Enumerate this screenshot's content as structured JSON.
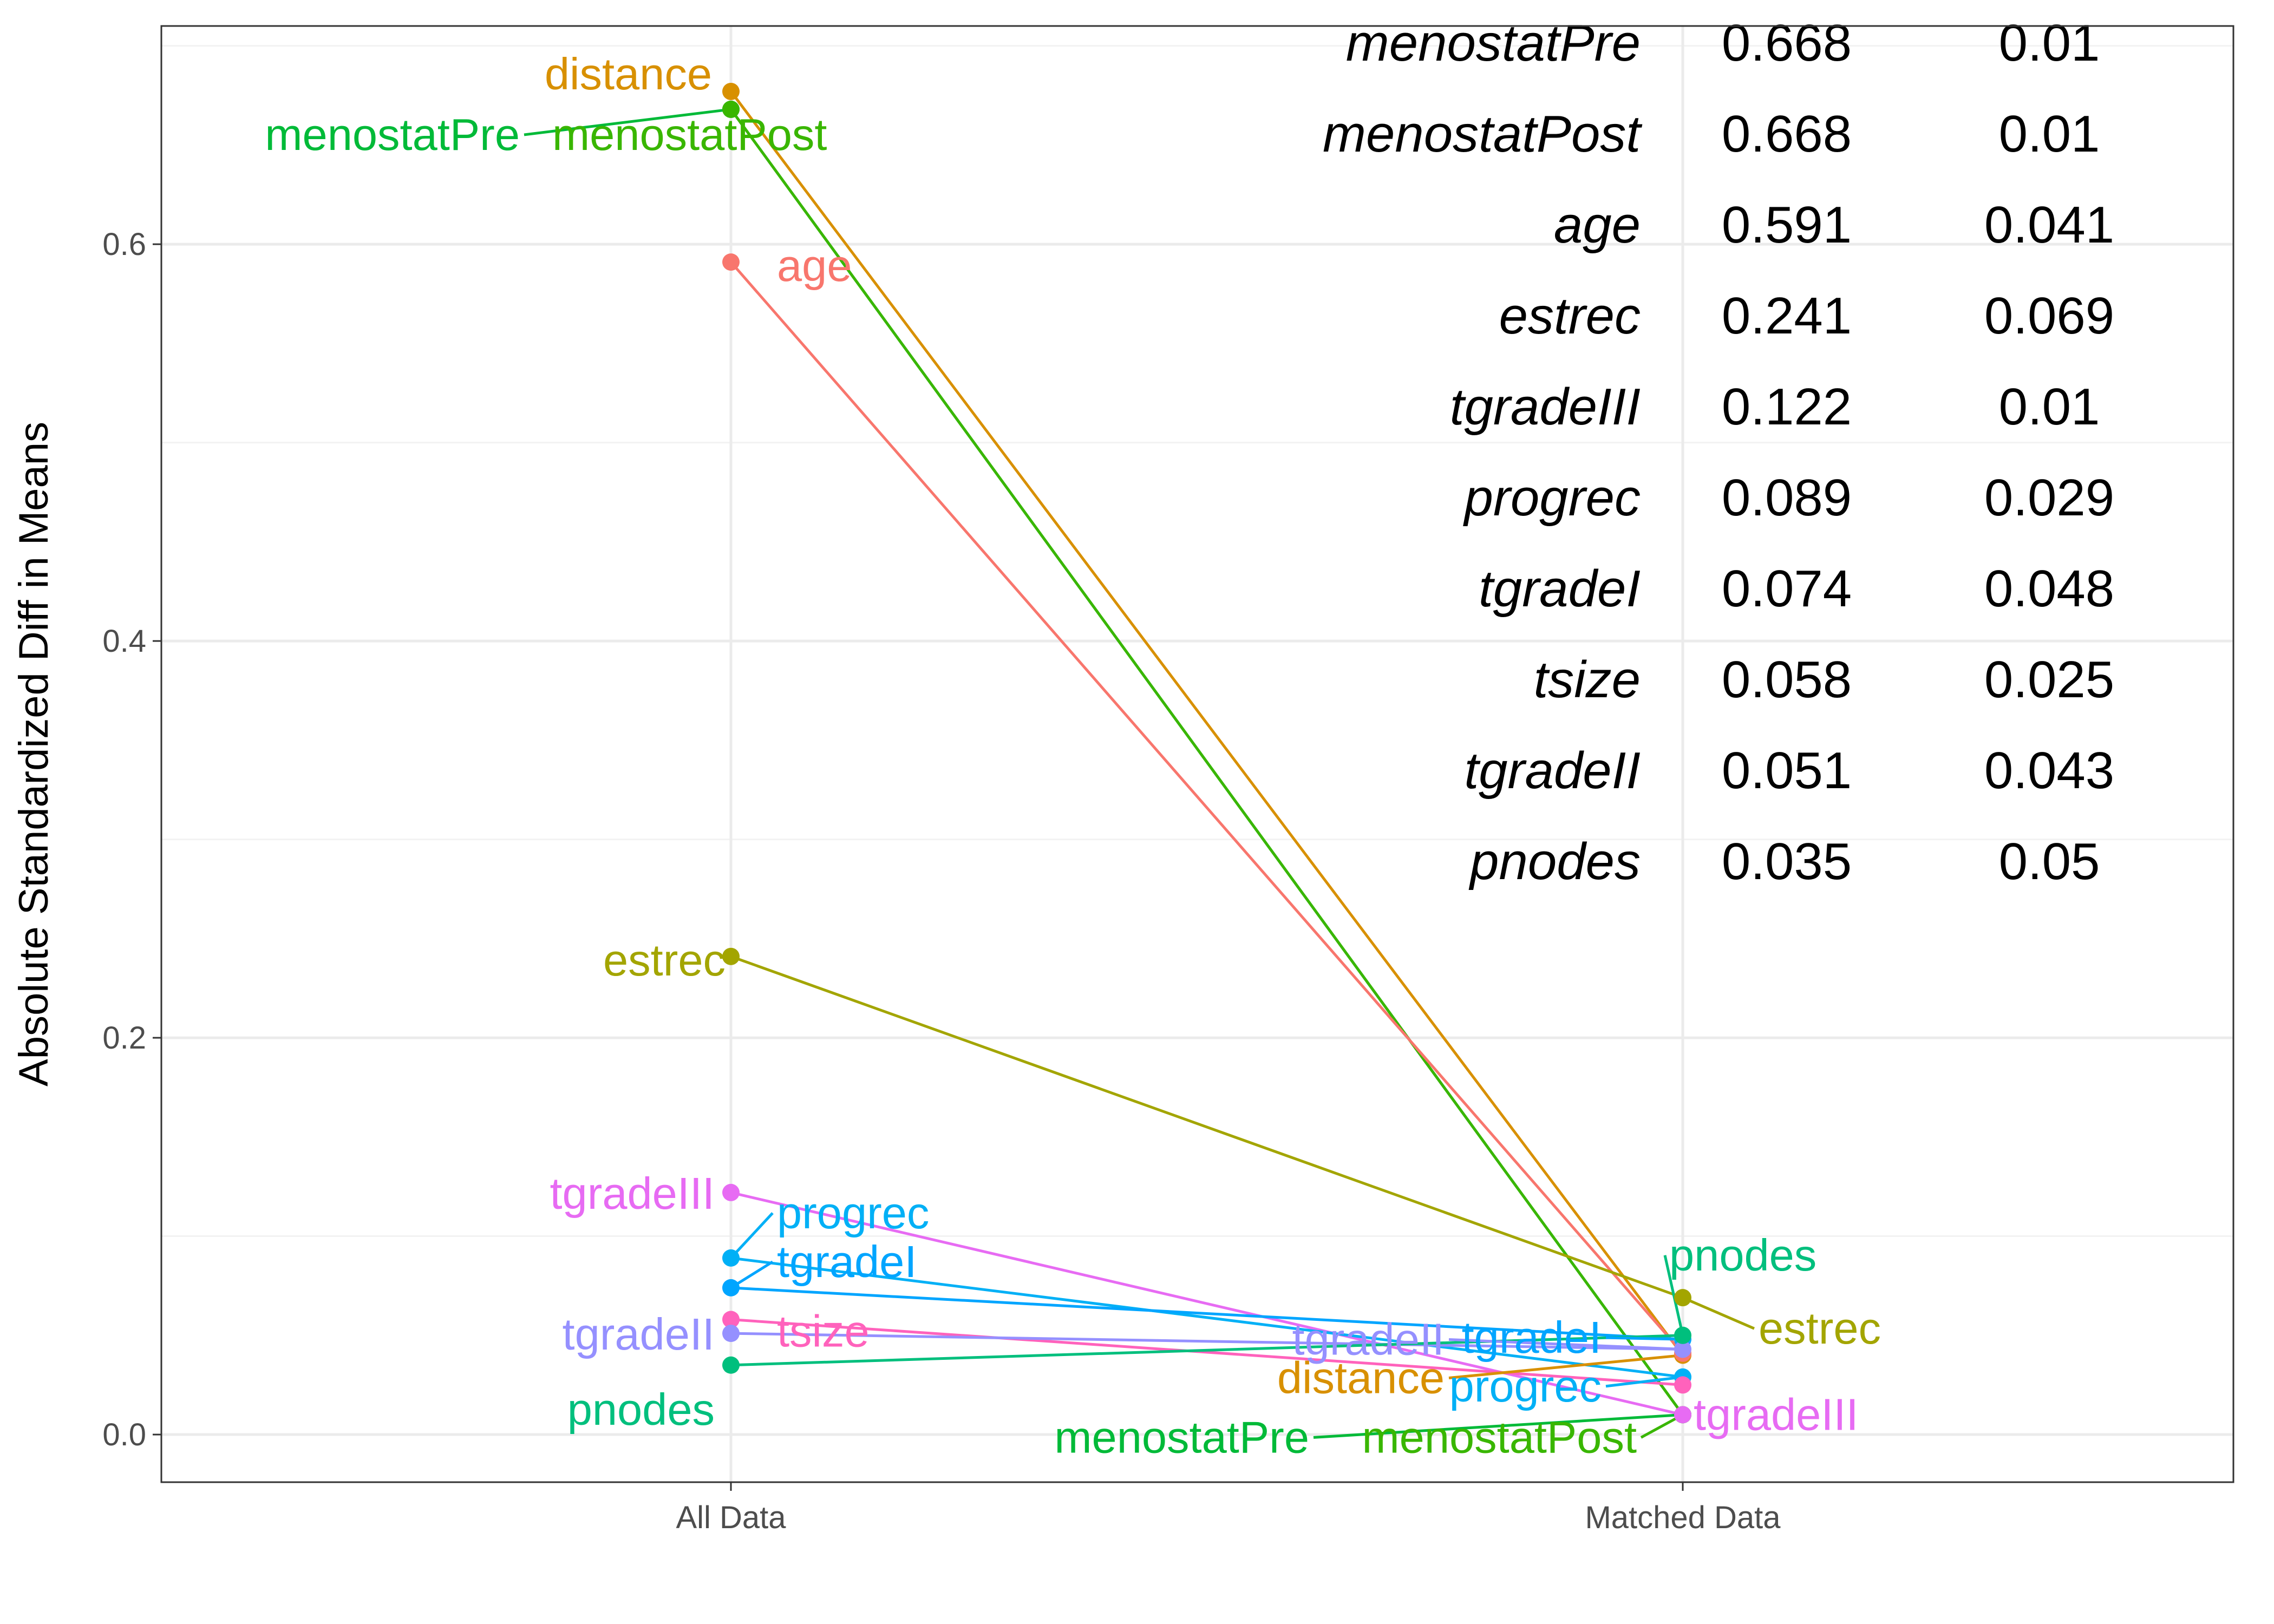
{
  "chart_data": {
    "type": "line",
    "x": [
      "All Data",
      "Matched Data"
    ],
    "ylabel": "Absolute Standardized Diff in Means",
    "xlabel": "",
    "ylim": [
      -0.024,
      0.71
    ],
    "yticks": [
      "0.0",
      "0.2",
      "0.4",
      "0.6"
    ],
    "grid": true,
    "series": [
      {
        "name": "distance",
        "values": [
          0.677,
          0.04
        ],
        "color": "#D89000"
      },
      {
        "name": "menostatPre",
        "values": [
          0.668,
          0.01
        ],
        "color": "#00BA38"
      },
      {
        "name": "menostatPost",
        "values": [
          0.668,
          0.01
        ],
        "color": "#39B600"
      },
      {
        "name": "age",
        "values": [
          0.591,
          0.041
        ],
        "color": "#F8766D"
      },
      {
        "name": "estrec",
        "values": [
          0.241,
          0.069
        ],
        "color": "#A3A500"
      },
      {
        "name": "tgradeIII",
        "values": [
          0.122,
          0.01
        ],
        "color": "#E76BF3"
      },
      {
        "name": "progrec",
        "values": [
          0.089,
          0.029
        ],
        "color": "#00B0F6"
      },
      {
        "name": "tgradeI",
        "values": [
          0.074,
          0.048
        ],
        "color": "#00A5FF"
      },
      {
        "name": "tsize",
        "values": [
          0.058,
          0.025
        ],
        "color": "#FF62BC"
      },
      {
        "name": "tgradeII",
        "values": [
          0.051,
          0.043
        ],
        "color": "#9590FF"
      },
      {
        "name": "pnodes",
        "values": [
          0.035,
          0.05
        ],
        "color": "#00BF7D"
      }
    ],
    "table": [
      {
        "variable": "menostatPre",
        "all": "0.668",
        "matched": "0.01"
      },
      {
        "variable": "menostatPost",
        "all": "0.668",
        "matched": "0.01"
      },
      {
        "variable": "age",
        "all": "0.591",
        "matched": "0.041"
      },
      {
        "variable": "estrec",
        "all": "0.241",
        "matched": "0.069"
      },
      {
        "variable": "tgradeIII",
        "all": "0.122",
        "matched": "0.01"
      },
      {
        "variable": "progrec",
        "all": "0.089",
        "matched": "0.029"
      },
      {
        "variable": "tgradeI",
        "all": "0.074",
        "matched": "0.048"
      },
      {
        "variable": "tsize",
        "all": "0.058",
        "matched": "0.025"
      },
      {
        "variable": "tgradeII",
        "all": "0.051",
        "matched": "0.043"
      },
      {
        "variable": "pnodes",
        "all": "0.035",
        "matched": "0.05"
      }
    ]
  }
}
